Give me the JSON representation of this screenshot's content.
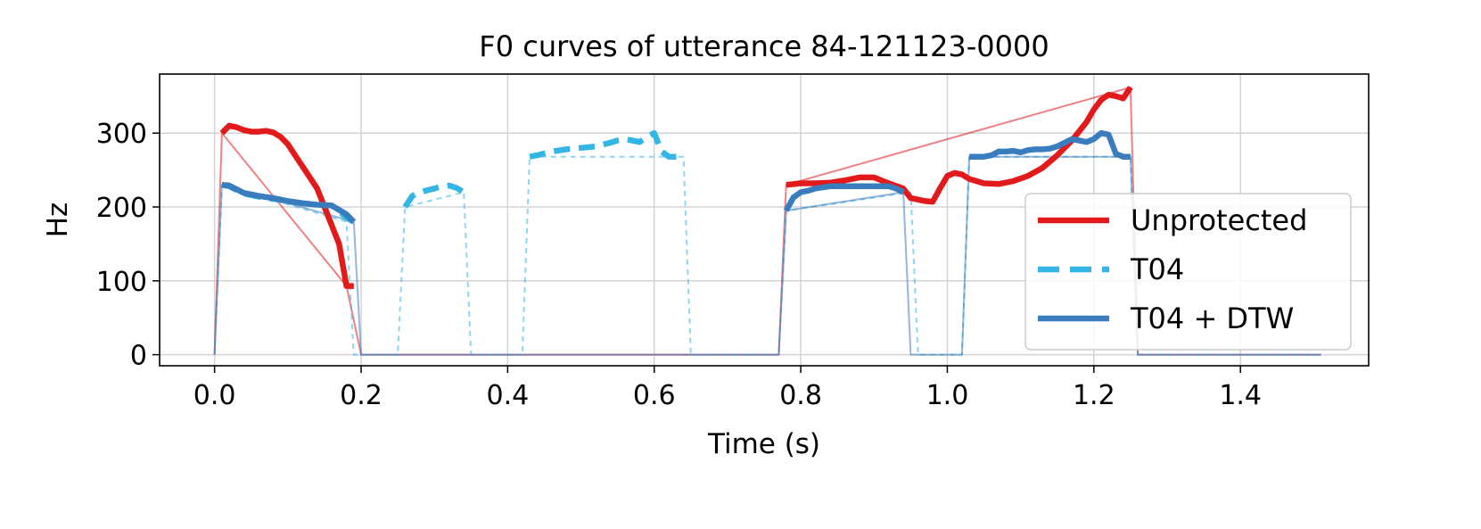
{
  "chart_data": {
    "type": "line",
    "title": "F0 curves of utterance 84-121123-0000",
    "xlabel": "Time (s)",
    "ylabel": "Hz",
    "xlim": [
      -0.075,
      1.575
    ],
    "ylim": [
      -15,
      380
    ],
    "xticks": [
      0.0,
      0.2,
      0.4,
      0.6,
      0.8,
      1.0,
      1.2,
      1.4
    ],
    "xtick_labels": [
      "0.0",
      "0.2",
      "0.4",
      "0.6",
      "0.8",
      "1.0",
      "1.2",
      "1.4"
    ],
    "yticks": [
      0,
      100,
      200,
      300
    ],
    "ytick_labels": [
      "0",
      "100",
      "200",
      "300"
    ],
    "grid": true,
    "legend_position": "lower-right",
    "series": [
      {
        "name": "Unprotected",
        "color": "#e31a1c",
        "style": "solid",
        "full_x": [
          0.0,
          0.01,
          0.18,
          0.2,
          0.77,
          0.78,
          1.25,
          1.26,
          1.51
        ],
        "full_y": [
          0,
          300,
          93,
          0,
          0,
          230,
          362,
          0,
          0
        ],
        "segments": [
          {
            "x": [
              0.01,
              0.02,
              0.03,
              0.04,
              0.05,
              0.06,
              0.07,
              0.08,
              0.09,
              0.1,
              0.11,
              0.12,
              0.13,
              0.14,
              0.15,
              0.16,
              0.17,
              0.18,
              0.19
            ],
            "y": [
              300,
              310,
              308,
              304,
              302,
              302,
              303,
              301,
              295,
              285,
              270,
              255,
              240,
              225,
              200,
              175,
              150,
              93,
              93
            ]
          },
          {
            "x": [
              0.78,
              0.8,
              0.82,
              0.84,
              0.86,
              0.88,
              0.9,
              0.92,
              0.94,
              0.95,
              0.97,
              0.98,
              0.99,
              1.0,
              1.01,
              1.02,
              1.03,
              1.05,
              1.07,
              1.09,
              1.11,
              1.13,
              1.15,
              1.17,
              1.19,
              1.2,
              1.21,
              1.22,
              1.23,
              1.24,
              1.25
            ],
            "y": [
              230,
              232,
              232,
              233,
              236,
              240,
              240,
              232,
              225,
              212,
              208,
              207,
              225,
              242,
              246,
              244,
              238,
              232,
              231,
              235,
              242,
              253,
              270,
              290,
              315,
              332,
              345,
              352,
              350,
              347,
              362
            ]
          }
        ]
      },
      {
        "name": "T04",
        "color": "#33b5e5",
        "style": "dashed",
        "full_x": [
          0.0,
          0.01,
          0.18,
          0.19,
          0.25,
          0.26,
          0.34,
          0.35,
          0.42,
          0.43,
          0.64,
          0.65,
          0.77,
          0.78,
          0.95,
          0.96,
          1.02,
          1.03,
          1.25,
          1.26,
          1.51
        ],
        "full_y": [
          0,
          230,
          180,
          0,
          0,
          200,
          220,
          0,
          0,
          268,
          268,
          0,
          0,
          195,
          220,
          0,
          0,
          268,
          268,
          0,
          0
        ],
        "segments": [
          {
            "x": [
              0.01,
              0.02,
              0.04,
              0.06,
              0.08,
              0.1,
              0.12,
              0.14,
              0.16,
              0.17,
              0.18,
              0.19
            ],
            "y": [
              230,
              228,
              218,
              214,
              211,
              208,
              205,
              203,
              202,
              195,
              185,
              180
            ]
          },
          {
            "x": [
              0.26,
              0.27,
              0.28,
              0.3,
              0.31,
              0.32,
              0.33,
              0.34
            ],
            "y": [
              200,
              215,
              220,
              225,
              228,
              229,
              226,
              220
            ]
          },
          {
            "x": [
              0.43,
              0.44,
              0.46,
              0.48,
              0.5,
              0.52,
              0.54,
              0.55,
              0.56,
              0.57,
              0.58,
              0.59,
              0.6,
              0.61,
              0.62,
              0.63
            ],
            "y": [
              268,
              270,
              275,
              278,
              280,
              282,
              287,
              290,
              292,
              290,
              288,
              295,
              300,
              275,
              268,
              268
            ]
          }
        ]
      },
      {
        "name": "T04 + DTW",
        "color": "#3a7dbf",
        "style": "solid",
        "full_x": [
          0.0,
          0.01,
          0.19,
          0.2,
          0.77,
          0.78,
          0.94,
          0.95,
          1.02,
          1.03,
          1.25,
          1.26,
          1.51
        ],
        "full_y": [
          0,
          230,
          180,
          0,
          0,
          195,
          220,
          0,
          0,
          268,
          268,
          0,
          0
        ],
        "segments": [
          {
            "x": [
              0.01,
              0.02,
              0.04,
              0.06,
              0.08,
              0.1,
              0.12,
              0.14,
              0.16,
              0.17,
              0.18,
              0.19
            ],
            "y": [
              230,
              229,
              219,
              215,
              212,
              208,
              205,
              203,
              202,
              196,
              190,
              180
            ]
          },
          {
            "x": [
              0.78,
              0.79,
              0.8,
              0.81,
              0.82,
              0.84,
              0.86,
              0.88,
              0.9,
              0.92,
              0.93,
              0.94
            ],
            "y": [
              195,
              213,
              220,
              222,
              225,
              228,
              228,
              228,
              228,
              228,
              225,
              220
            ]
          },
          {
            "x": [
              1.03,
              1.05,
              1.06,
              1.07,
              1.08,
              1.09,
              1.1,
              1.11,
              1.12,
              1.13,
              1.14,
              1.15,
              1.16,
              1.17,
              1.18,
              1.19,
              1.2,
              1.21,
              1.22,
              1.23,
              1.24,
              1.25
            ],
            "y": [
              268,
              268,
              270,
              275,
              275,
              276,
              274,
              277,
              278,
              278,
              279,
              282,
              287,
              292,
              290,
              288,
              292,
              300,
              298,
              272,
              268,
              268
            ]
          }
        ]
      }
    ]
  }
}
